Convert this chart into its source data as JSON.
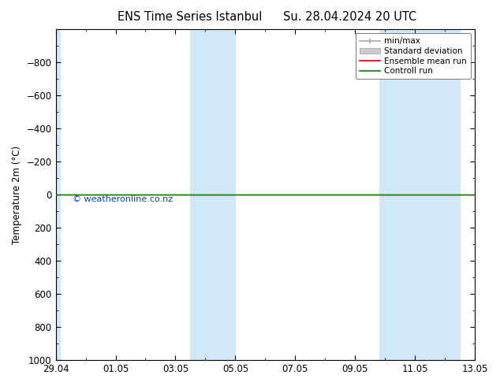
{
  "title_left": "ENS Time Series Istanbul",
  "title_right": "Su. 28.04.2024 20 UTC",
  "ylabel": "Temperature 2m (°C)",
  "ylim_top": 1000,
  "ylim_bottom": -1000,
  "yticks": [
    -800,
    -600,
    -400,
    -200,
    0,
    200,
    400,
    600,
    800,
    1000
  ],
  "xlim_start": 0,
  "xlim_end": 14,
  "xtick_labels": [
    "29.04",
    "01.05",
    "03.05",
    "05.05",
    "07.05",
    "09.05",
    "11.05",
    "13.05"
  ],
  "xtick_positions": [
    0,
    2,
    4,
    6,
    8,
    10,
    12,
    14
  ],
  "blue_bands": [
    [
      0.0,
      0.15
    ],
    [
      4.5,
      5.3
    ],
    [
      5.3,
      6.0
    ],
    [
      10.8,
      11.8
    ],
    [
      11.8,
      13.5
    ]
  ],
  "blue_band_color": "#d0e8f8",
  "green_line_y": 0,
  "red_line_y": 0,
  "watermark": "© weatheronline.co.nz",
  "watermark_color": "#0044cc",
  "background_color": "#ffffff",
  "plot_bg_color": "#ffffff",
  "legend_items": [
    {
      "label": "min/max",
      "color": "#aaaaaa",
      "lw": 1.2
    },
    {
      "label": "Standard deviation",
      "color": "#cccccc",
      "lw": 5
    },
    {
      "label": "Ensemble mean run",
      "color": "#cc0000",
      "lw": 1.2
    },
    {
      "label": "Controll run",
      "color": "#008800",
      "lw": 1.2
    }
  ],
  "font_size": 8.5,
  "title_font_size": 10.5
}
